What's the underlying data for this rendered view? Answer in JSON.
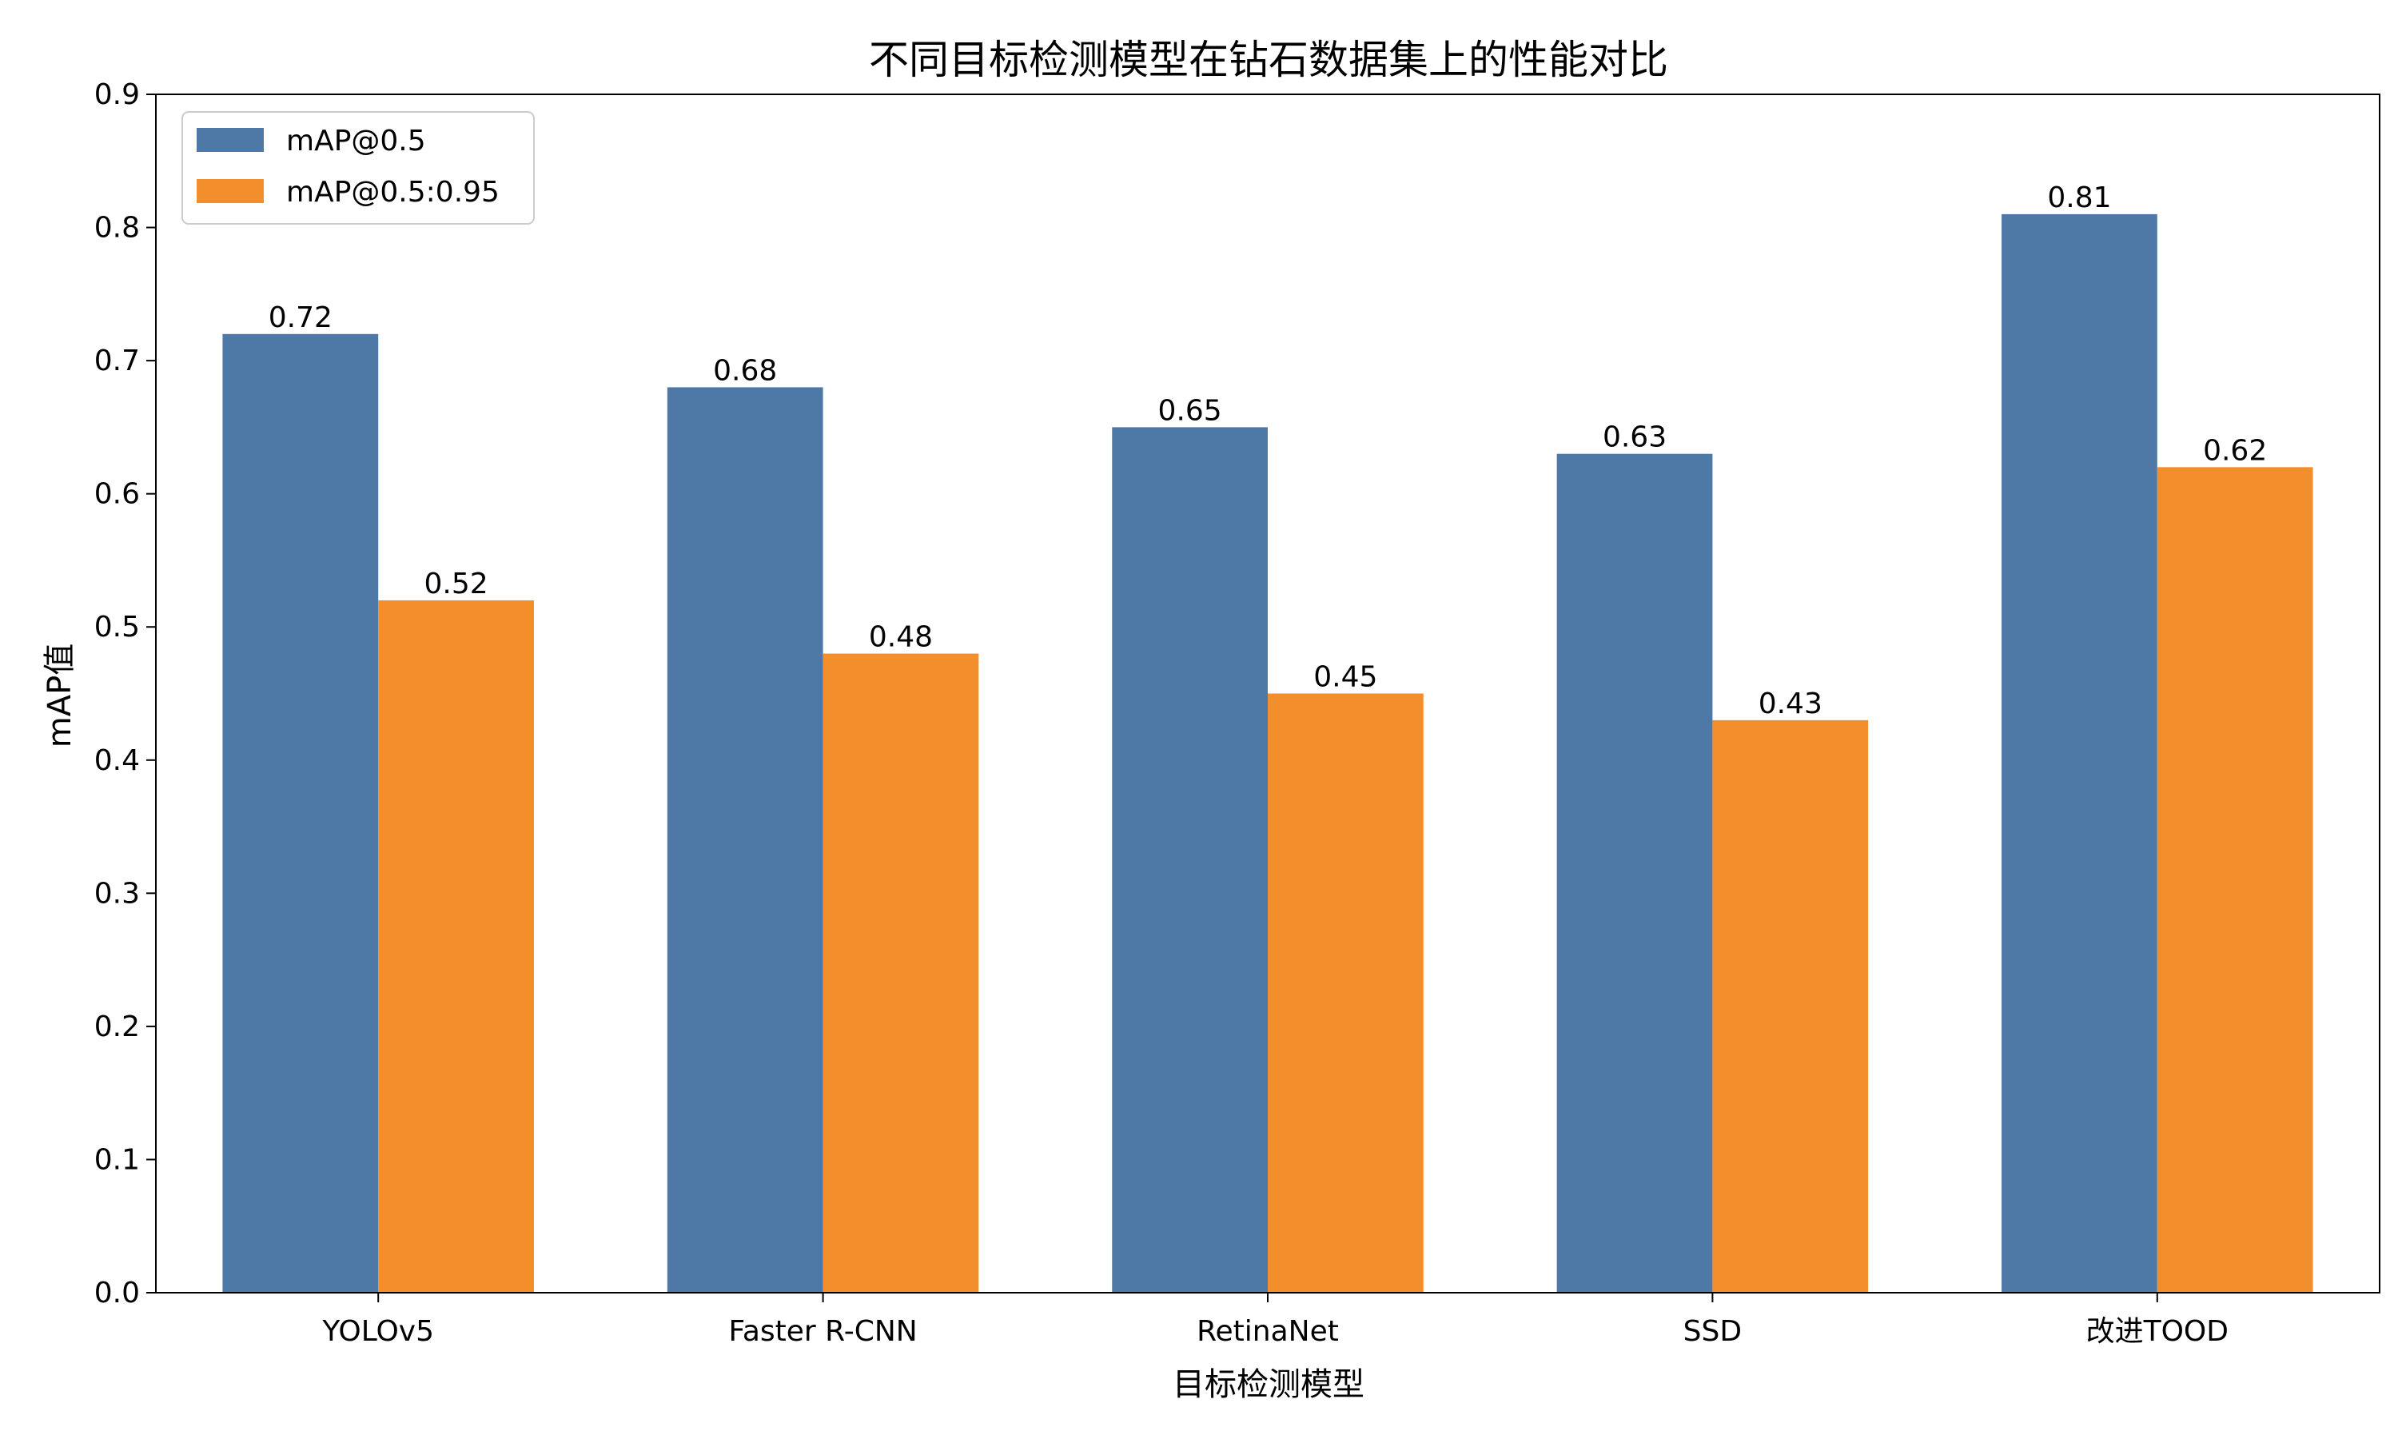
{
  "chart_data": {
    "type": "bar",
    "title": "不同目标检测模型在钻石数据集上的性能对比",
    "xlabel": "目标检测模型",
    "ylabel": "mAP值",
    "categories": [
      "YOLOv5",
      "Faster R-CNN",
      "RetinaNet",
      "SSD",
      "改进TOOD"
    ],
    "series": [
      {
        "name": "mAP@0.5",
        "values": [
          0.72,
          0.68,
          0.65,
          0.63,
          0.81
        ],
        "color": "#4e79a7"
      },
      {
        "name": "mAP@0.5:0.95",
        "values": [
          0.52,
          0.48,
          0.45,
          0.43,
          0.62
        ],
        "color": "#f28e2b"
      }
    ],
    "ylim": [
      0,
      0.9
    ],
    "yticks": [
      "0.0",
      "0.1",
      "0.2",
      "0.3",
      "0.4",
      "0.5",
      "0.6",
      "0.7",
      "0.8",
      "0.9"
    ],
    "grid": false,
    "legend_position": "top-left"
  }
}
